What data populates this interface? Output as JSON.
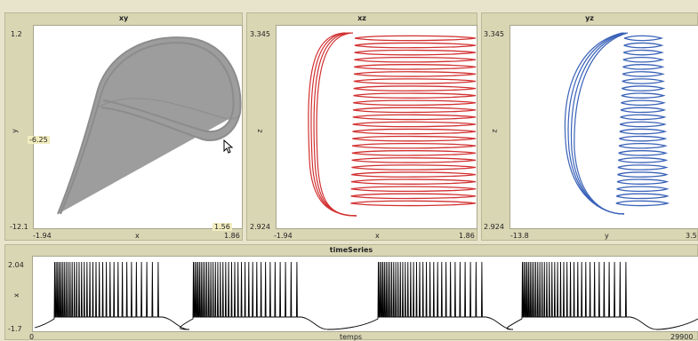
{
  "panels": {
    "xy": {
      "title": "xy",
      "x_label": "x",
      "y_label": "y",
      "x_min": "-1.94",
      "x_max": "1.86",
      "y_min": "-12.1",
      "y_max": "1.2",
      "cursor_x": "1.56",
      "cursor_y": "-6.25",
      "color": "#8c8c8c"
    },
    "xz": {
      "title": "xz",
      "x_label": "x",
      "y_label": "z",
      "x_min": "-1.94",
      "x_max": "1.86",
      "y_min": "2.924",
      "y_max": "3.345",
      "color": "#d23030"
    },
    "yz": {
      "title": "yz",
      "x_label": "y",
      "y_label": "z",
      "x_min": "-13.8",
      "x_max": "3.5",
      "y_min": "2.924",
      "y_max": "3.345",
      "color": "#3a62b8"
    }
  },
  "timeseries": {
    "title": "timeSeries",
    "x_label": "temps",
    "y_label": "x",
    "x_min": "0",
    "x_max": "29900",
    "y_min": "-1.7",
    "y_max": "2.04",
    "color": "#000000"
  }
}
